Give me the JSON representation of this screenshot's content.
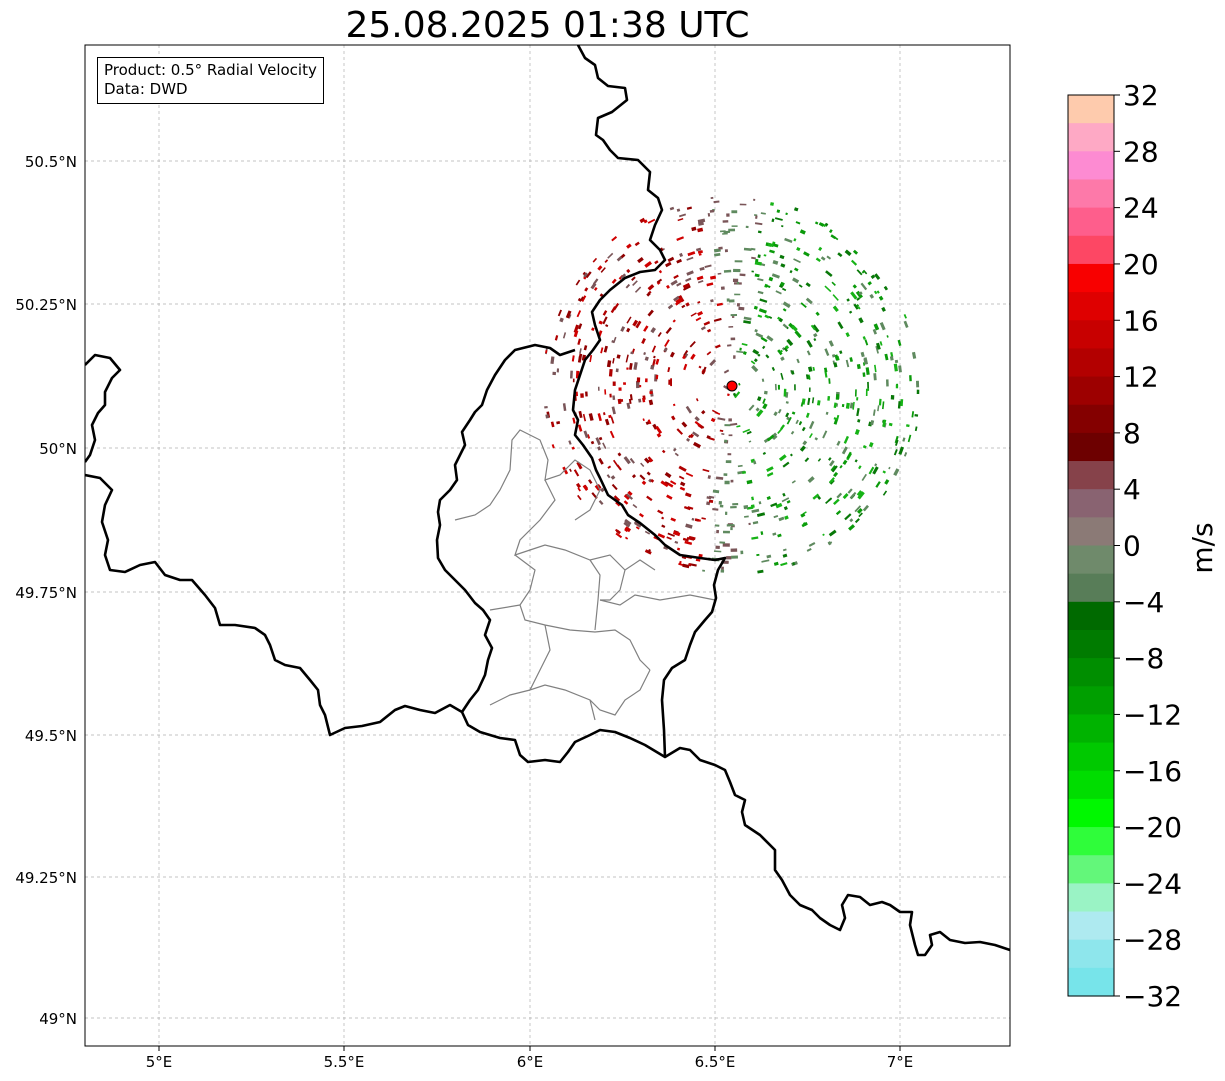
{
  "title": "25.08.2025 01:38 UTC",
  "info_box": {
    "product_line": "Product: 0.5° Radial Velocity",
    "data_line": "Data: DWD"
  },
  "map": {
    "lon_ticks": [
      "5°E",
      "5.5°E",
      "6°E",
      "6.5°E",
      "7°E"
    ],
    "lat_ticks": [
      "50.5°N",
      "50.25°N",
      "50°N",
      "49.75°N",
      "49.5°N",
      "49.25°N",
      "49°N"
    ],
    "radar_site_color": "#ff0000",
    "border_color": "#000000",
    "district_color": "#808080",
    "grid": true
  },
  "colorbar": {
    "label": "m/s",
    "ticks": [
      "32",
      "28",
      "24",
      "20",
      "16",
      "12",
      "8",
      "4",
      "0",
      "−4",
      "−8",
      "−12",
      "−16",
      "−20",
      "−24",
      "−28",
      "−32"
    ],
    "colors_top_to_bottom": [
      "#fecbad",
      "#fea9c5",
      "#fd8bd2",
      "#fd79a9",
      "#fe5e8c",
      "#fd4764",
      "#f80000",
      "#df0000",
      "#c80000",
      "#b30000",
      "#9d0000",
      "#840000",
      "#6d0000",
      "#86424a",
      "#896371",
      "#8b7a76",
      "#6f8a6b",
      "#587d58",
      "#006a00",
      "#007b00",
      "#008e00",
      "#009f00",
      "#00b300",
      "#00c900",
      "#00dd00",
      "#00f800",
      "#2ffd3a",
      "#63f77a",
      "#9af3c5",
      "#aeeaf0",
      "#8ee6ec",
      "#77e4ea"
    ]
  },
  "legend_palette": {
    "inbound_green": [
      "#0a9a0a",
      "#16b316",
      "#087808",
      "#5f8a5f"
    ],
    "outbound_red": [
      "#b00000",
      "#900000",
      "#d00000",
      "#7a5558"
    ]
  }
}
